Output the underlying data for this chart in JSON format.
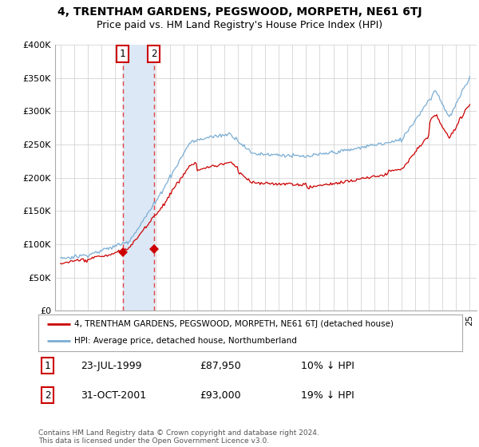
{
  "title": "4, TRENTHAM GARDENS, PEGSWOOD, MORPETH, NE61 6TJ",
  "subtitle": "Price paid vs. HM Land Registry's House Price Index (HPI)",
  "ylim": [
    0,
    400000
  ],
  "yticks": [
    0,
    50000,
    100000,
    150000,
    200000,
    250000,
    300000,
    350000,
    400000
  ],
  "ytick_labels": [
    "£0",
    "£50K",
    "£100K",
    "£150K",
    "£200K",
    "£250K",
    "£300K",
    "£350K",
    "£400K"
  ],
  "x_start_year": 1995,
  "x_end_year": 2025,
  "sale1_year": 1999.55,
  "sale1_price": 87950,
  "sale1_label": "1",
  "sale1_date": "23-JUL-1999",
  "sale1_amount": "£87,950",
  "sale1_hpi_note": "10% ↓ HPI",
  "sale2_year": 2001.83,
  "sale2_price": 93000,
  "sale2_label": "2",
  "sale2_date": "31-OCT-2001",
  "sale2_amount": "£93,000",
  "sale2_hpi_note": "19% ↓ HPI",
  "line_color_red": "#cc0000",
  "line_color_blue": "#7aadd4",
  "marker_fill": "#cc0000",
  "vline_color": "#dd4444",
  "shading_color": "#dce8f5",
  "background_color": "#ffffff",
  "grid_color": "#cccccc",
  "legend_line1": "4, TRENTHAM GARDENS, PEGSWOOD, MORPETH, NE61 6TJ (detached house)",
  "legend_line2": "HPI: Average price, detached house, Northumberland",
  "footer": "Contains HM Land Registry data © Crown copyright and database right 2024.\nThis data is licensed under the Open Government Licence v3.0.",
  "title_fontsize": 10,
  "subtitle_fontsize": 9
}
